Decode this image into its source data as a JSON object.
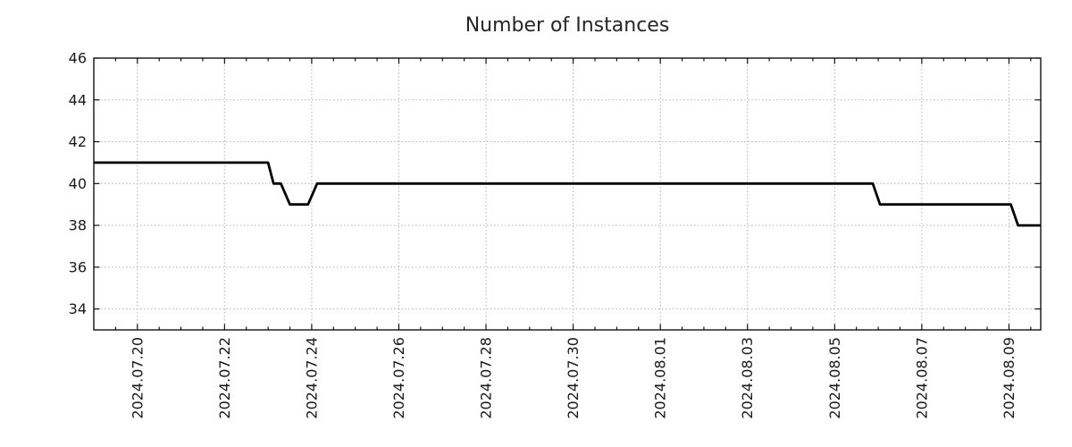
{
  "chart_data": {
    "type": "line",
    "title": "Number of Instances",
    "legend": "none",
    "grid": {
      "show": true,
      "style": "dotted",
      "color": "#b3b3b3"
    },
    "series": [
      {
        "name": "instances",
        "color": "#000000",
        "line_width": 2.8,
        "points": [
          [
            "2024-07-19T00:00",
            41
          ],
          [
            "2024-07-23T00:00",
            41
          ],
          [
            "2024-07-23T03:00",
            40
          ],
          [
            "2024-07-23T07:00",
            40
          ],
          [
            "2024-07-23T12:00",
            39
          ],
          [
            "2024-07-23T22:00",
            39
          ],
          [
            "2024-07-24T03:00",
            40
          ],
          [
            "2024-08-05T21:00",
            40
          ],
          [
            "2024-08-06T01:00",
            39
          ],
          [
            "2024-08-09T01:00",
            39
          ],
          [
            "2024-08-09T05:00",
            38
          ],
          [
            "2024-08-09T17:30",
            38
          ]
        ]
      }
    ],
    "x_axis": {
      "start": "2024-07-19T00:00",
      "end": "2024-08-09T17:30",
      "major_ticks": [
        "2024-07-20",
        "2024-07-22",
        "2024-07-24",
        "2024-07-26",
        "2024-07-28",
        "2024-07-30",
        "2024-08-01",
        "2024-08-03",
        "2024-08-05",
        "2024-08-07",
        "2024-08-09"
      ],
      "tick_labels": [
        "2024.07.20",
        "2024.07.22",
        "2024.07.24",
        "2024.07.26",
        "2024.07.28",
        "2024.07.30",
        "2024.08.01",
        "2024.08.03",
        "2024.08.05",
        "2024.08.07",
        "2024.08.09"
      ],
      "minor_tick_hours": 12,
      "label_rotation_deg": -90
    },
    "y_axis": {
      "min": 33.0,
      "max": 46.0,
      "ticks": [
        34,
        36,
        38,
        40,
        42,
        44,
        46
      ]
    },
    "style": {
      "background": "#ffffff",
      "axis_color": "#000000",
      "text_color": "#1a1a1a",
      "grid_color": "#b3b3b3"
    }
  }
}
